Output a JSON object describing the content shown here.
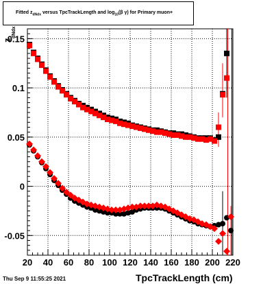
{
  "chart_data": {
    "type": "scatter",
    "title_parts": {
      "prefix": "Fitted  z",
      "sub1": "dNdx",
      "mid": "  versus TpcTrackLength and log",
      "sub2": "10",
      "suffix": "(β γ) for Primary muon+"
    },
    "xlabel": "TpcTrackLength (cm)",
    "ylabel": "z",
    "ylabel_sub": "dNdx",
    "footer": "Thu Sep  9 11:55:25 2021",
    "xlim": [
      20,
      220
    ],
    "ylim": [
      -0.07,
      0.16
    ],
    "x_ticks": [
      20,
      40,
      60,
      80,
      100,
      120,
      140,
      160,
      180,
      200,
      220
    ],
    "x_tick_labels": [
      "20",
      "40",
      "60",
      "80",
      "100",
      "120",
      "140",
      "160",
      "180",
      "200",
      "220"
    ],
    "y_ticks": [
      -0.05,
      0,
      0.05,
      0.1,
      0.15
    ],
    "y_tick_labels": [
      "-0.05",
      "0",
      "0.05",
      "0.1",
      "0.15"
    ],
    "grid": true,
    "colors": {
      "black": "#000000",
      "red": "#ff0000"
    },
    "series": [
      {
        "marker": "square",
        "color": "#000000",
        "x": [
          22,
          26,
          30,
          34,
          38,
          42,
          46,
          50,
          54,
          58,
          62,
          66,
          70,
          74,
          78,
          82,
          86,
          90,
          94,
          98,
          102,
          106,
          110,
          114,
          118,
          122,
          126,
          130,
          134,
          138,
          142,
          146,
          150,
          154,
          158,
          162,
          166,
          170,
          174,
          178,
          182,
          186,
          190,
          194,
          198,
          202,
          206,
          210,
          214
        ],
        "y": [
          0.144,
          0.136,
          0.13,
          0.124,
          0.118,
          0.112,
          0.107,
          0.102,
          0.098,
          0.094,
          0.09,
          0.087,
          0.084,
          0.082,
          0.08,
          0.078,
          0.076,
          0.074,
          0.072,
          0.07,
          0.069,
          0.068,
          0.066,
          0.065,
          0.064,
          0.062,
          0.061,
          0.06,
          0.059,
          0.058,
          0.057,
          0.057,
          0.056,
          0.055,
          0.054,
          0.054,
          0.053,
          0.053,
          0.052,
          0.051,
          0.05,
          0.049,
          0.049,
          0.049,
          0.049,
          0.047,
          0.05,
          0.094,
          0.135
        ]
      },
      {
        "marker": "square",
        "color": "#ff0000",
        "x": [
          22,
          26,
          30,
          34,
          38,
          42,
          46,
          50,
          54,
          58,
          62,
          66,
          70,
          74,
          78,
          82,
          86,
          90,
          94,
          98,
          102,
          106,
          110,
          114,
          118,
          122,
          126,
          130,
          134,
          138,
          142,
          146,
          150,
          154,
          158,
          162,
          166,
          170,
          174,
          178,
          182,
          186,
          190,
          194,
          198,
          202,
          206,
          210,
          214
        ],
        "y": [
          0.143,
          0.135,
          0.129,
          0.123,
          0.117,
          0.111,
          0.106,
          0.101,
          0.097,
          0.093,
          0.089,
          0.086,
          0.083,
          0.08,
          0.078,
          0.076,
          0.074,
          0.072,
          0.07,
          0.068,
          0.067,
          0.066,
          0.064,
          0.063,
          0.062,
          0.061,
          0.06,
          0.059,
          0.058,
          0.057,
          0.056,
          0.055,
          0.055,
          0.054,
          0.053,
          0.052,
          0.052,
          0.051,
          0.05,
          0.05,
          0.049,
          0.048,
          0.048,
          0.047,
          0.048,
          0.046,
          0.06,
          0.093,
          0.11
        ]
      },
      {
        "marker": "circle",
        "color": "#000000",
        "x": [
          22,
          26,
          30,
          34,
          38,
          42,
          46,
          50,
          54,
          58,
          62,
          66,
          70,
          74,
          78,
          82,
          86,
          90,
          94,
          98,
          102,
          106,
          110,
          114,
          118,
          122,
          126,
          130,
          134,
          138,
          142,
          146,
          150,
          154,
          158,
          162,
          166,
          170,
          174,
          178,
          182,
          186,
          190,
          194,
          198,
          202,
          206,
          210,
          214,
          218
        ],
        "y": [
          0.042,
          0.036,
          0.03,
          0.024,
          0.018,
          0.012,
          0.006,
          0.001,
          -0.004,
          -0.008,
          -0.012,
          -0.015,
          -0.017,
          -0.019,
          -0.021,
          -0.022,
          -0.024,
          -0.025,
          -0.026,
          -0.027,
          -0.027,
          -0.028,
          -0.028,
          -0.028,
          -0.027,
          -0.026,
          -0.024,
          -0.023,
          -0.022,
          -0.022,
          -0.022,
          -0.022,
          -0.022,
          -0.023,
          -0.025,
          -0.027,
          -0.029,
          -0.031,
          -0.033,
          -0.035,
          -0.036,
          -0.038,
          -0.039,
          -0.04,
          -0.041,
          -0.04,
          -0.039,
          -0.038,
          -0.032,
          -0.045
        ]
      },
      {
        "marker": "diamond",
        "color": "#ff0000",
        "x": [
          22,
          26,
          30,
          34,
          38,
          42,
          46,
          50,
          54,
          58,
          62,
          66,
          70,
          74,
          78,
          82,
          86,
          90,
          94,
          98,
          102,
          106,
          110,
          114,
          118,
          122,
          126,
          130,
          134,
          138,
          142,
          146,
          150,
          154,
          158,
          162,
          166,
          170,
          174,
          178,
          182,
          186,
          190,
          194,
          198,
          202,
          206,
          210,
          214,
          218
        ],
        "y": [
          0.043,
          0.037,
          0.031,
          0.025,
          0.02,
          0.014,
          0.008,
          0.003,
          -0.002,
          -0.006,
          -0.009,
          -0.012,
          -0.014,
          -0.016,
          -0.018,
          -0.019,
          -0.02,
          -0.021,
          -0.022,
          -0.023,
          -0.024,
          -0.024,
          -0.024,
          -0.023,
          -0.022,
          -0.021,
          -0.021,
          -0.02,
          -0.02,
          -0.02,
          -0.02,
          -0.019,
          -0.02,
          -0.021,
          -0.023,
          -0.025,
          -0.027,
          -0.029,
          -0.031,
          -0.033,
          -0.034,
          -0.036,
          -0.038,
          -0.039,
          -0.041,
          -0.043,
          -0.056,
          -0.048,
          -0.066,
          -0.031
        ]
      }
    ]
  }
}
